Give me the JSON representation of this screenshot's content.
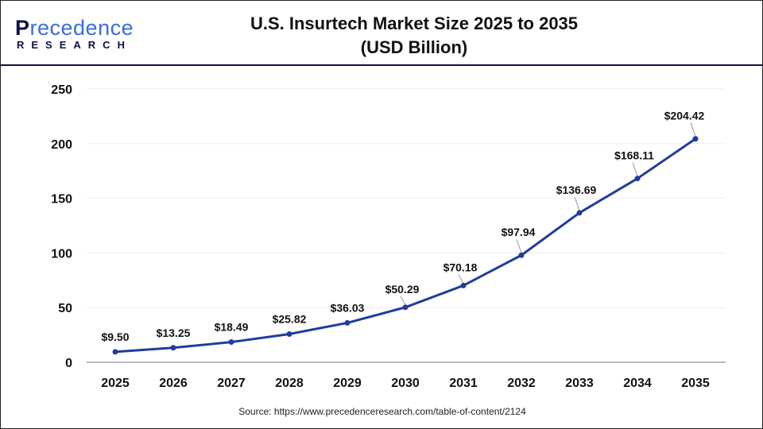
{
  "logo": {
    "line1": "Precedence",
    "line2": "RESEARCH"
  },
  "source": "Source: https://www.precedenceresearch.com/table-of-content/2124",
  "chart_data": {
    "type": "line",
    "title": "U.S. Insurtech Market Size 2025 to 2035",
    "subtitle": "(USD Billion)",
    "xlabel": "",
    "ylabel": "",
    "categories": [
      "2025",
      "2026",
      "2027",
      "2028",
      "2029",
      "2030",
      "2031",
      "2032",
      "2033",
      "2034",
      "2035"
    ],
    "values": [
      9.5,
      13.25,
      18.49,
      25.82,
      36.03,
      50.29,
      70.18,
      97.94,
      136.69,
      168.11,
      204.42
    ],
    "data_labels": [
      "$9.50",
      "$13.25",
      "$18.49",
      "$25.82",
      "$36.03",
      "$50.29",
      "$70.18",
      "$97.94",
      "$136.69",
      "$168.11",
      "$204.42"
    ],
    "ylim": [
      0,
      250
    ],
    "yticks": [
      0,
      50,
      100,
      150,
      200,
      250
    ],
    "grid": true,
    "line_color": "#1f3d9e"
  }
}
